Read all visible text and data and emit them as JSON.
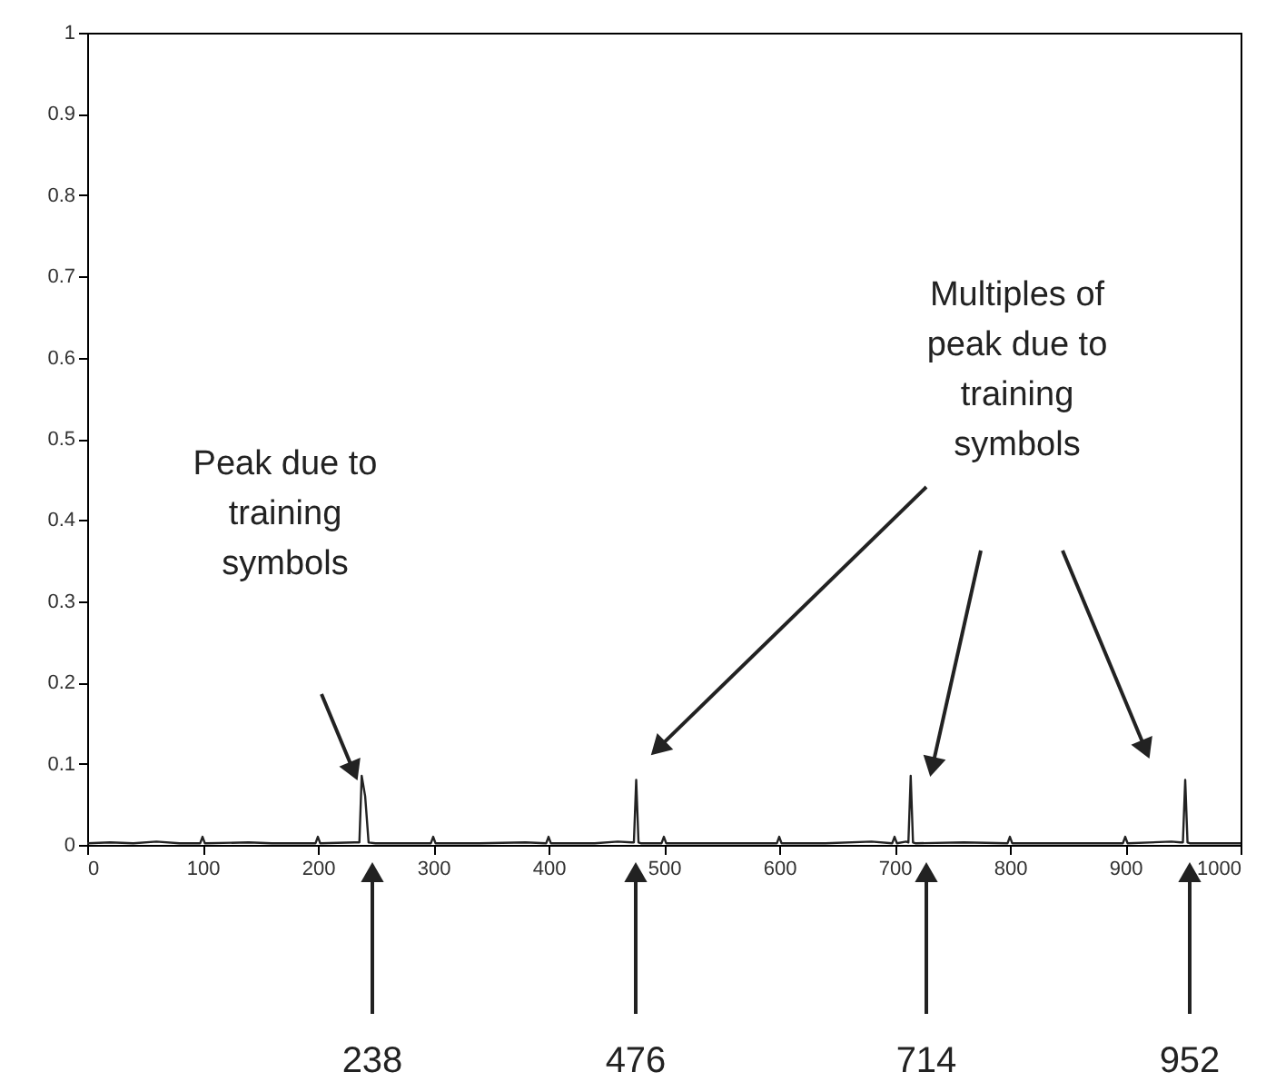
{
  "chart_data": {
    "type": "line",
    "x": [
      0,
      20,
      40,
      60,
      80,
      98,
      100,
      102,
      140,
      160,
      198,
      200,
      202,
      232,
      236,
      238,
      241,
      244,
      250,
      298,
      300,
      302,
      340,
      380,
      398,
      400,
      402,
      440,
      460,
      472,
      474,
      476,
      478,
      480,
      498,
      500,
      502,
      540,
      580,
      598,
      600,
      602,
      640,
      680,
      698,
      700,
      702,
      710,
      712,
      714,
      716,
      718,
      760,
      798,
      800,
      802,
      840,
      880,
      898,
      900,
      902,
      940,
      948,
      950,
      952,
      954,
      956,
      1000
    ],
    "series": [
      {
        "color": "#222222",
        "values": [
          0.002,
          0.003,
          0.002,
          0.004,
          0.002,
          0.002,
          0.01,
          0.002,
          0.003,
          0.002,
          0.002,
          0.01,
          0.002,
          0.003,
          0.003,
          0.085,
          0.06,
          0.003,
          0.002,
          0.002,
          0.01,
          0.002,
          0.002,
          0.003,
          0.002,
          0.01,
          0.002,
          0.002,
          0.004,
          0.003,
          0.003,
          0.08,
          0.003,
          0.002,
          0.002,
          0.01,
          0.002,
          0.002,
          0.002,
          0.002,
          0.01,
          0.002,
          0.002,
          0.004,
          0.002,
          0.01,
          0.002,
          0.004,
          0.003,
          0.085,
          0.003,
          0.002,
          0.003,
          0.002,
          0.01,
          0.002,
          0.002,
          0.002,
          0.002,
          0.01,
          0.002,
          0.004,
          0.003,
          0.003,
          0.08,
          0.003,
          0.002,
          0.002
        ]
      }
    ],
    "xlim": [
      0,
      1000
    ],
    "xticks": [
      0,
      100,
      200,
      300,
      400,
      500,
      600,
      700,
      800,
      900,
      1000
    ],
    "ylim": [
      0,
      1
    ],
    "yticks": [
      0,
      0.1,
      0.2,
      0.3,
      0.4,
      0.5,
      0.6,
      0.7,
      0.8,
      0.9,
      1
    ],
    "grid": false,
    "line_style": "solid",
    "annotations": [
      "Peak due to training symbols",
      "Multiples of peak due to training symbols",
      "238",
      "476",
      "714",
      "952"
    ]
  }
}
